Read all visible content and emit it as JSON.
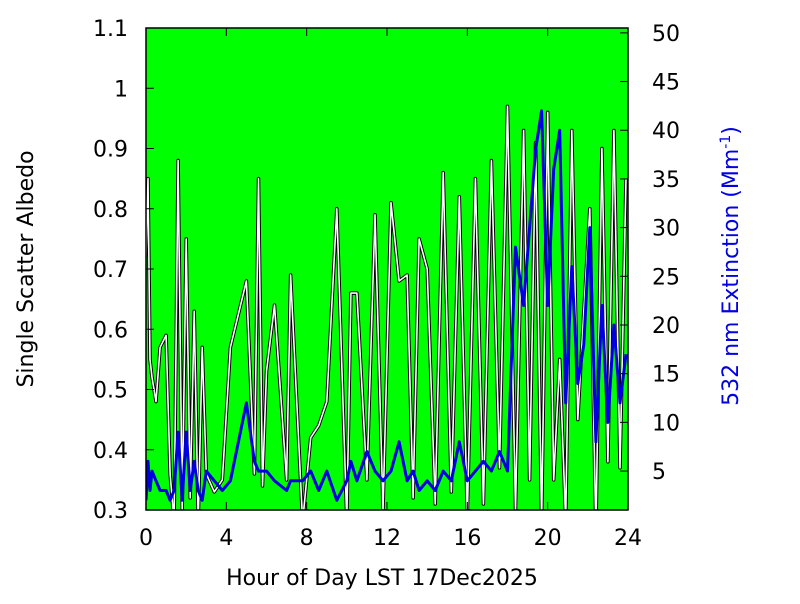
{
  "chart_data": {
    "type": "line",
    "xlabel": "Hour of Day LST 17Dec2025",
    "ylabel": "Single Scatter Albedo",
    "y2label": {
      "text": "532 nm Extinction (Mm",
      "sup": "-1",
      "end": ")"
    },
    "background": "#00ff00",
    "xlim": [
      0,
      24
    ],
    "xticks": [
      0,
      4,
      8,
      12,
      16,
      20,
      24
    ],
    "ylim": [
      0.3,
      1.1
    ],
    "yticks": [
      0.3,
      0.4,
      0.5,
      0.6,
      0.7,
      0.8,
      0.9,
      1,
      1.1
    ],
    "y2lim": [
      1,
      50.5
    ],
    "y2ticks": [
      5,
      10,
      15,
      20,
      25,
      30,
      35,
      40,
      45,
      50
    ],
    "x": [
      0,
      0.1,
      0.2,
      0.3,
      0.5,
      0.7,
      1.0,
      1.2,
      1.4,
      1.6,
      1.8,
      2.0,
      2.2,
      2.4,
      2.6,
      2.8,
      3.0,
      3.4,
      3.8,
      4.2,
      5.0,
      5.4,
      5.6,
      5.8,
      6.0,
      6.4,
      7.0,
      7.2,
      7.8,
      8.2,
      8.6,
      9.0,
      9.5,
      10.0,
      10.2,
      10.5,
      11.0,
      11.4,
      11.8,
      12.2,
      12.6,
      13.0,
      13.3,
      13.6,
      14.0,
      14.4,
      14.8,
      15.2,
      15.6,
      16.0,
      16.4,
      16.8,
      17.2,
      17.6,
      18.0,
      18.4,
      18.8,
      19.1,
      19.4,
      19.7,
      20.0,
      20.3,
      20.6,
      20.9,
      21.2,
      21.5,
      21.8,
      22.1,
      22.4,
      22.7,
      23.0,
      23.3,
      23.6,
      23.9
    ],
    "series": [
      {
        "color": "#ffffff",
        "values": [
          0.72,
          0.85,
          0.55,
          0.52,
          0.48,
          0.57,
          0.59,
          0.36,
          0.28,
          0.88,
          0.3,
          0.75,
          0.32,
          0.63,
          0.28,
          0.57,
          0.36,
          0.33,
          0.35,
          0.57,
          0.68,
          0.36,
          0.85,
          0.34,
          0.53,
          0.64,
          0.35,
          0.69,
          0.28,
          0.42,
          0.44,
          0.48,
          0.8,
          0.28,
          0.66,
          0.66,
          0.35,
          0.79,
          0.3,
          0.81,
          0.68,
          0.69,
          0.32,
          0.75,
          0.7,
          0.31,
          0.86,
          0.33,
          0.82,
          0.29,
          0.85,
          0.31,
          0.88,
          0.37,
          0.97,
          0.3,
          0.93,
          0.35,
          0.91,
          0.28,
          0.96,
          0.35,
          0.55,
          0.28,
          0.93,
          0.45,
          0.63,
          0.8,
          0.26,
          0.9,
          0.38,
          0.93,
          0.37,
          0.85
        ]
      },
      {
        "color": "#0000e0",
        "axis": "y2",
        "values": [
          2,
          6,
          3,
          5,
          4,
          3,
          3,
          2,
          3,
          9,
          2,
          9,
          3,
          6,
          3,
          2,
          5,
          4,
          3,
          4,
          12,
          6,
          5,
          5,
          5,
          4,
          3,
          4,
          4,
          5,
          3,
          5,
          2,
          4,
          6,
          4,
          7,
          5,
          4,
          5,
          8,
          4,
          5,
          3,
          4,
          3,
          5,
          4,
          8,
          4,
          5,
          6,
          5,
          7,
          5,
          28,
          22,
          30,
          38,
          42,
          22,
          36,
          40,
          12,
          26,
          14,
          18,
          30,
          8,
          22,
          10,
          20,
          12,
          17
        ]
      }
    ]
  }
}
